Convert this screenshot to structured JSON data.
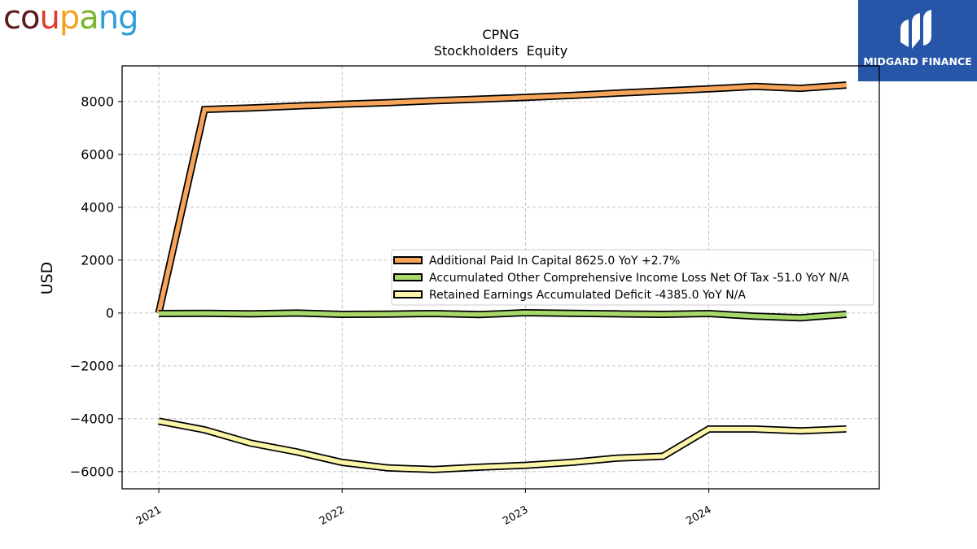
{
  "logos": {
    "left_text": "coupang",
    "left_letter_colors": [
      "#5a1a1a",
      "#5a1a1a",
      "#e23b2e",
      "#f2a31c",
      "#79b62e",
      "#2e9fd9",
      "#2e9fd9"
    ],
    "right_text": "MIDGARD FINANCE",
    "right_bg": "#2755a8"
  },
  "chart_data": {
    "type": "line",
    "title": "CPNG",
    "subtitle": "Stockholders  Equity",
    "xlabel": "",
    "ylabel": "USD",
    "xlim": [
      2020.8,
      2024.93
    ],
    "ylim": [
      -6650,
      9350
    ],
    "x_ticks": [
      2021,
      2022,
      2023,
      2024
    ],
    "x_tick_labels": [
      "2021",
      "2022",
      "2023",
      "2024"
    ],
    "y_ticks": [
      -6000,
      -4000,
      -2000,
      0,
      2000,
      4000,
      6000,
      8000
    ],
    "y_tick_labels": [
      "−6000",
      "−4000",
      "−2000",
      "0",
      "2000",
      "4000",
      "6000",
      "8000"
    ],
    "grid": true,
    "legend_position": "center-right",
    "x": [
      2021.0,
      2021.25,
      2021.5,
      2021.75,
      2022.0,
      2022.25,
      2022.5,
      2022.75,
      2023.0,
      2023.25,
      2023.5,
      2023.75,
      2024.0,
      2024.25,
      2024.5,
      2024.75
    ],
    "series": [
      {
        "name": "Additional Paid In Capital  8625.0 YoY +2.7%",
        "color": "#f5a55a",
        "values": [
          0,
          7700,
          7760,
          7830,
          7900,
          7960,
          8030,
          8090,
          8160,
          8230,
          8320,
          8400,
          8480,
          8570,
          8500,
          8625
        ]
      },
      {
        "name": "Accumulated Other Comprehensive Income Loss Net Of Tax  -51.0 YoY N/A",
        "color": "#a8d86a",
        "values": [
          -20,
          -10,
          -30,
          0,
          -50,
          -40,
          -20,
          -60,
          10,
          -10,
          -30,
          -50,
          -20,
          -120,
          -180,
          -51
        ]
      },
      {
        "name": "Retained Earnings Accumulated Deficit  -4385.0 YoY N/A",
        "color": "#fbf5a8",
        "values": [
          -4090,
          -4420,
          -4920,
          -5250,
          -5650,
          -5860,
          -5920,
          -5830,
          -5760,
          -5650,
          -5490,
          -5420,
          -4390,
          -4390,
          -4460,
          -4385
        ]
      }
    ]
  }
}
